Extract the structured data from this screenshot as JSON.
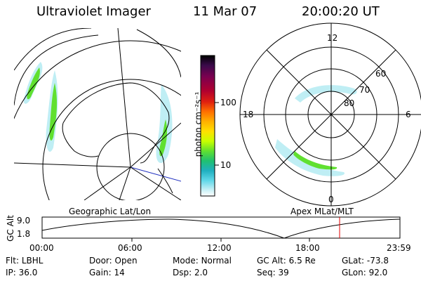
{
  "header": {
    "title": "Ultraviolet Imager",
    "date": "11 Mar 07",
    "time": "20:00:20 UT"
  },
  "colorbar": {
    "label": "photon cm⁻²s⁻¹",
    "ticks": [
      "100",
      "10"
    ],
    "colors": [
      "#000000",
      "#3a0a4a",
      "#7a0050",
      "#b00030",
      "#e02010",
      "#ff7000",
      "#ffb000",
      "#ffe000",
      "#c8ff00",
      "#60e030",
      "#20c070",
      "#20b0c0",
      "#60d8e8",
      "#bfeef4",
      "#ffffff"
    ]
  },
  "polar_plot": {
    "hour_labels": {
      "top": "12",
      "left": "18",
      "right": "6",
      "bottom": "0"
    },
    "lat_labels": [
      "60",
      "70",
      "80"
    ]
  },
  "timeline": {
    "left_label": "Geographic Lat/Lon",
    "right_label": "Apex MLat/MLT",
    "yaxis_label": "GC Alt",
    "y_ticks": [
      "9.0",
      "1.8"
    ],
    "x_ticks": [
      "00:00",
      "06:00",
      "12:00",
      "18:00",
      "23:59"
    ]
  },
  "info": {
    "row1": [
      {
        "label": "Flt:",
        "value": "LBHL"
      },
      {
        "label": "Door:",
        "value": "Open"
      },
      {
        "label": "Mode:",
        "value": "Normal"
      },
      {
        "label": "GC Alt:",
        "value": "6.5 Re"
      },
      {
        "label": "GLat:",
        "value": "-73.8"
      }
    ],
    "row2": [
      {
        "label": "IP:",
        "value": "36.0"
      },
      {
        "label": "Gain:",
        "value": "14"
      },
      {
        "label": "Dsp:",
        "value": "2.0"
      },
      {
        "label": "Seq:",
        "value": "39"
      },
      {
        "label": "GLon:",
        "value": "92.0"
      }
    ]
  }
}
